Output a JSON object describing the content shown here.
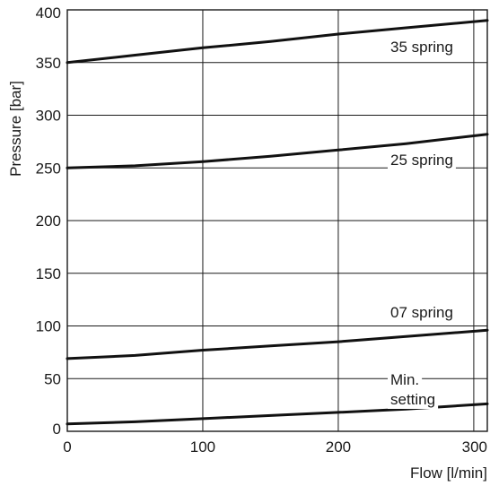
{
  "chart_data": {
    "type": "line",
    "xlabel": "Flow [l/min]",
    "ylabel": "Pressure [bar]",
    "xlim": [
      0,
      310
    ],
    "ylim": [
      0,
      400
    ],
    "x_ticks": [
      0,
      100,
      200,
      300
    ],
    "y_ticks": [
      0,
      50,
      100,
      150,
      200,
      250,
      300,
      350,
      400
    ],
    "grid": true,
    "series": [
      {
        "name": "35 spring",
        "x": [
          0,
          50,
          100,
          150,
          200,
          250,
          310
        ],
        "y": [
          350,
          357,
          364,
          370,
          377,
          383,
          390
        ]
      },
      {
        "name": "25 spring",
        "x": [
          0,
          50,
          100,
          150,
          200,
          250,
          310
        ],
        "y": [
          250,
          252,
          256,
          261,
          267,
          273,
          282
        ]
      },
      {
        "name": "07 spring",
        "x": [
          0,
          50,
          100,
          150,
          200,
          250,
          310
        ],
        "y": [
          69,
          72,
          77,
          81,
          85,
          90,
          96
        ]
      },
      {
        "name": "Min. setting",
        "x": [
          0,
          50,
          100,
          150,
          200,
          250,
          310
        ],
        "y": [
          7,
          9,
          12,
          15,
          18,
          21,
          26
        ]
      }
    ],
    "annotations": [
      {
        "text": "35 spring",
        "series": "35 spring"
      },
      {
        "text": "25 spring",
        "series": "25 spring"
      },
      {
        "text": "07 spring",
        "series": "07 spring"
      },
      {
        "text": "Min.",
        "series": "Min. setting"
      },
      {
        "text": "setting",
        "series": "Min. setting"
      }
    ]
  }
}
